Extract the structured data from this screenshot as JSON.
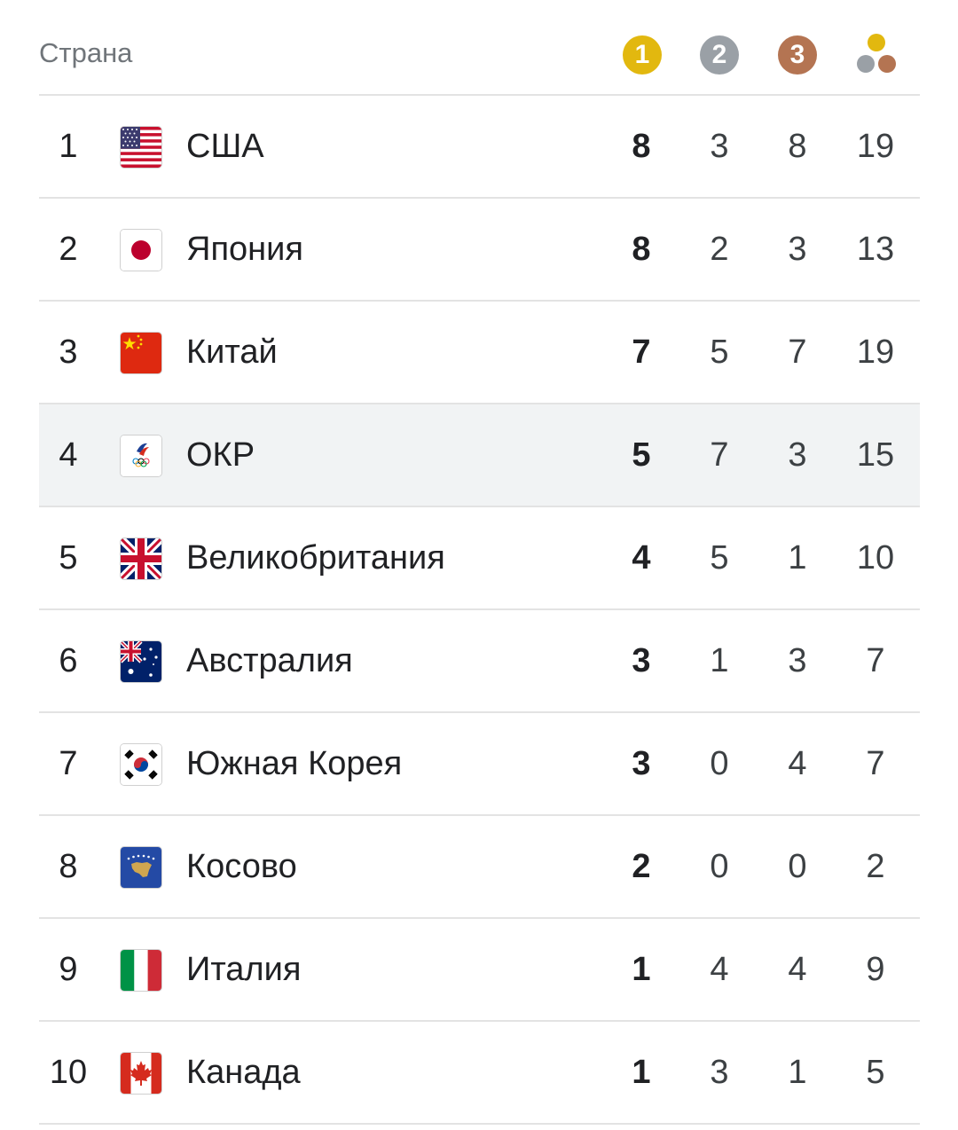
{
  "header": {
    "country_label": "Страна",
    "gold_label": "1",
    "silver_label": "2",
    "bronze_label": "3"
  },
  "colors": {
    "gold": "#e2b80f",
    "silver": "#9aa0a6",
    "bronze": "#b47452",
    "highlight_row": "#f1f3f4"
  },
  "rows": [
    {
      "rank": "1",
      "country": "США",
      "flag": "usa-flag-icon",
      "gold": "8",
      "silver": "3",
      "bronze": "8",
      "total": "19"
    },
    {
      "rank": "2",
      "country": "Япония",
      "flag": "japan-flag-icon",
      "gold": "8",
      "silver": "2",
      "bronze": "3",
      "total": "13"
    },
    {
      "rank": "3",
      "country": "Китай",
      "flag": "china-flag-icon",
      "gold": "7",
      "silver": "5",
      "bronze": "7",
      "total": "19"
    },
    {
      "rank": "4",
      "country": "ОКР",
      "flag": "roc-emblem-icon",
      "gold": "5",
      "silver": "7",
      "bronze": "3",
      "total": "15"
    },
    {
      "rank": "5",
      "country": "Великобритания",
      "flag": "uk-flag-icon",
      "gold": "4",
      "silver": "5",
      "bronze": "1",
      "total": "10"
    },
    {
      "rank": "6",
      "country": "Австралия",
      "flag": "australia-flag-icon",
      "gold": "3",
      "silver": "1",
      "bronze": "3",
      "total": "7"
    },
    {
      "rank": "7",
      "country": "Южная Корея",
      "flag": "south-korea-flag-icon",
      "gold": "3",
      "silver": "0",
      "bronze": "4",
      "total": "7"
    },
    {
      "rank": "8",
      "country": "Косово",
      "flag": "kosovo-flag-icon",
      "gold": "2",
      "silver": "0",
      "bronze": "0",
      "total": "2"
    },
    {
      "rank": "9",
      "country": "Италия",
      "flag": "italy-flag-icon",
      "gold": "1",
      "silver": "4",
      "bronze": "4",
      "total": "9"
    },
    {
      "rank": "10",
      "country": "Канада",
      "flag": "canada-flag-icon",
      "gold": "1",
      "silver": "3",
      "bronze": "1",
      "total": "5"
    }
  ]
}
